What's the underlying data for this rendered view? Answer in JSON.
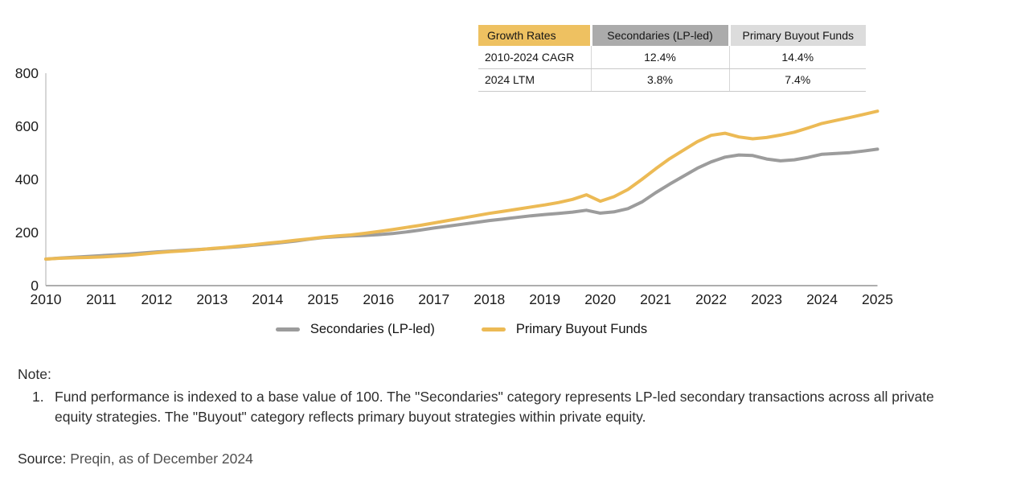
{
  "colors": {
    "primary_line": "#ECBA55",
    "secondary_line": "#9C9C9C",
    "header_yellow_bg": "#EEC161",
    "header_gray_bg": "#ABABAB",
    "header_lightgray_bg": "#DCDCDC",
    "x_axis": "#ADADAD",
    "y_axis": "#C9C9C9"
  },
  "table": {
    "header": [
      "Growth Rates",
      "Secondaries (LP-led)",
      "Primary Buyout Funds"
    ],
    "rows": [
      [
        "2010-2024 CAGR",
        "12.4%",
        "14.4%"
      ],
      [
        "2024 LTM",
        "3.8%",
        "7.4%"
      ]
    ]
  },
  "chart_data": {
    "type": "line",
    "title": "",
    "xlabel": "",
    "ylabel": "",
    "xlim": [
      2010,
      2025
    ],
    "ylim": [
      0,
      800
    ],
    "yticks": [
      0,
      200,
      400,
      600,
      800
    ],
    "xticks": [
      2010,
      2011,
      2012,
      2013,
      2014,
      2015,
      2016,
      2017,
      2018,
      2019,
      2020,
      2021,
      2022,
      2023,
      2024,
      2025
    ],
    "grid": false,
    "legend_position": "bottom",
    "x": [
      2010,
      2010.25,
      2010.5,
      2010.75,
      2011,
      2011.25,
      2011.5,
      2011.75,
      2012,
      2012.25,
      2012.5,
      2012.75,
      2013,
      2013.25,
      2013.5,
      2013.75,
      2014,
      2014.25,
      2014.5,
      2014.75,
      2015,
      2015.25,
      2015.5,
      2015.75,
      2016,
      2016.25,
      2016.5,
      2016.75,
      2017,
      2017.25,
      2017.5,
      2017.75,
      2018,
      2018.25,
      2018.5,
      2018.75,
      2019,
      2019.25,
      2019.5,
      2019.75,
      2020,
      2020.25,
      2020.5,
      2020.75,
      2021,
      2021.25,
      2021.5,
      2021.75,
      2022,
      2022.25,
      2022.5,
      2022.75,
      2023,
      2023.25,
      2023.5,
      2023.75,
      2024,
      2024.25,
      2024.5,
      2024.75,
      2025
    ],
    "series": [
      {
        "name": "Secondaries (LP-led)",
        "color": "#9C9C9C",
        "values": [
          100,
          104,
          107,
          110,
          113,
          116,
          119,
          123,
          127,
          130,
          133,
          136,
          139,
          143,
          147,
          152,
          157,
          162,
          168,
          175,
          181,
          184,
          187,
          189,
          192,
          196,
          202,
          209,
          217,
          224,
          231,
          238,
          245,
          251,
          257,
          263,
          268,
          272,
          277,
          284,
          273,
          278,
          290,
          315,
          350,
          382,
          412,
          442,
          466,
          484,
          492,
          490,
          477,
          470,
          474,
          483,
          495,
          498,
          501,
          507,
          514
        ]
      },
      {
        "name": "Primary Buyout Funds",
        "color": "#ECBA55",
        "values": [
          100,
          103,
          105,
          106,
          108,
          111,
          114,
          119,
          124,
          128,
          131,
          135,
          140,
          144,
          149,
          154,
          160,
          165,
          171,
          176,
          182,
          187,
          191,
          197,
          204,
          211,
          219,
          227,
          236,
          245,
          254,
          263,
          272,
          280,
          288,
          296,
          304,
          313,
          325,
          342,
          318,
          335,
          362,
          400,
          440,
          478,
          510,
          542,
          566,
          574,
          560,
          553,
          558,
          567,
          578,
          594,
          611,
          622,
          633,
          645,
          657
        ]
      }
    ],
    "index_base_note": "Indexed to 100 at 2010"
  },
  "note": {
    "title": "Note:",
    "number": "1.",
    "text": "Fund performance is indexed to a base value of 100. The \"Secondaries\" category represents LP-led secondary transactions across all private equity strategies. The \"Buyout\" category reflects primary buyout strategies within private equity."
  },
  "source": {
    "label": "Source:",
    "text": "Preqin, as of December 2024"
  }
}
